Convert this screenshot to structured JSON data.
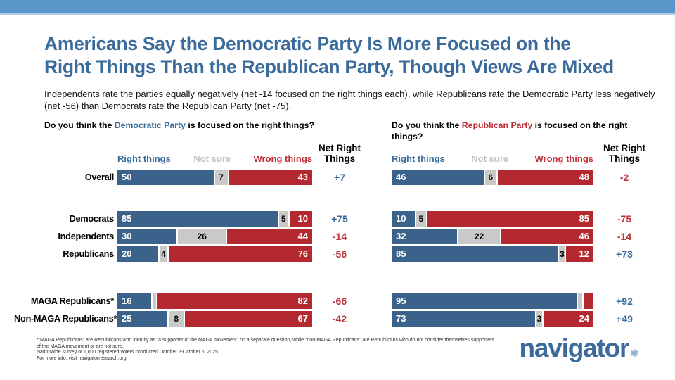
{
  "header": {
    "title_line1": "Americans Say the Democratic Party Is More Focused on the",
    "title_line2": "Right Things Than the Republican Party, Though Views Are Mixed",
    "subtitle": "Independents rate the parties equally negatively (net -14 focused on the right things each), while Republicans rate the Democratic Party less negatively (net -56) than Democrats rate the Republican Party (net -75)."
  },
  "colors": {
    "band_blue": "#5B96C8",
    "title_blue": "#3A6B9B",
    "bar_blue": "#3A628B",
    "bar_red": "#B4292F",
    "bar_gray": "#C9C9C7",
    "net_blue": "#3A6B9B",
    "net_red": "#BD3238",
    "header_gray": "#C2C2C0"
  },
  "chart_data": [
    {
      "type": "stacked-bar-100",
      "show_row_labels": true,
      "question": {
        "prefix": "Do you think the ",
        "party": "Democratic Party",
        "party_class": "q-party-blue",
        "suffix_line1": " is focused on the right things?",
        "line2": ""
      },
      "columns": [
        "Right things",
        "Not sure",
        "Wrong things"
      ],
      "net_header_line1": "Net Right",
      "net_header_line2": "Things",
      "rows": [
        {
          "label": "Overall",
          "group": 0,
          "values": [
            50,
            7,
            43
          ],
          "labels": [
            "50",
            "7",
            "43"
          ],
          "net": "+7",
          "net_color": "blue"
        },
        {
          "label": "Democrats",
          "group": 1,
          "values": [
            85,
            5,
            10
          ],
          "labels": [
            "85",
            "5",
            "10"
          ],
          "net": "+75",
          "net_color": "blue"
        },
        {
          "label": "Independents",
          "group": 1,
          "values": [
            30,
            26,
            44
          ],
          "labels": [
            "30",
            "26",
            "44"
          ],
          "net": "-14",
          "net_color": "red"
        },
        {
          "label": "Republicans",
          "group": 1,
          "values": [
            20,
            4,
            76
          ],
          "labels": [
            "20",
            "4",
            "76"
          ],
          "net": "-56",
          "net_color": "red"
        },
        {
          "label": "MAGA Republicans*",
          "group": 2,
          "values": [
            16,
            2,
            82
          ],
          "labels": [
            "16",
            "",
            "82"
          ],
          "net": "-66",
          "net_color": "red"
        },
        {
          "label": "Non-MAGA Republicans*",
          "group": 2,
          "values": [
            25,
            8,
            67
          ],
          "labels": [
            "25",
            "8",
            "67"
          ],
          "net": "-42",
          "net_color": "red"
        }
      ]
    },
    {
      "type": "stacked-bar-100",
      "show_row_labels": false,
      "question": {
        "prefix": "Do you think the ",
        "party": "Republican Party",
        "party_class": "q-party-red",
        "suffix_line1": " is focused on the right",
        "line2": "things?"
      },
      "columns": [
        "Right things",
        "Not sure",
        "Wrong things"
      ],
      "net_header_line1": "Net Right",
      "net_header_line2": "Things",
      "rows": [
        {
          "label": "Overall",
          "group": 0,
          "values": [
            46,
            6,
            48
          ],
          "labels": [
            "46",
            "6",
            "48"
          ],
          "net": "-2",
          "net_color": "red"
        },
        {
          "label": "Democrats",
          "group": 1,
          "values": [
            10,
            5,
            85
          ],
          "labels": [
            "10",
            "5",
            "85"
          ],
          "net": "-75",
          "net_color": "red"
        },
        {
          "label": "Independents",
          "group": 1,
          "values": [
            32,
            22,
            46
          ],
          "labels": [
            "32",
            "22",
            "46"
          ],
          "net": "-14",
          "net_color": "red"
        },
        {
          "label": "Republicans",
          "group": 1,
          "values": [
            85,
            3,
            12
          ],
          "labels": [
            "85",
            "3",
            "12"
          ],
          "net": "+73",
          "net_color": "blue"
        },
        {
          "label": "MAGA Republicans*",
          "group": 2,
          "values": [
            95,
            2,
            3
          ],
          "labels": [
            "95",
            "",
            ""
          ],
          "net": "+92",
          "net_color": "blue"
        },
        {
          "label": "Non-MAGA Republicans*",
          "group": 2,
          "values": [
            73,
            3,
            24
          ],
          "labels": [
            "73",
            "3",
            "24"
          ],
          "net": "+49",
          "net_color": "blue"
        }
      ]
    }
  ],
  "footnote": {
    "line1": "*“MAGA Republicans” are Republicans who identify as “a supporter of the MAGA movement” on a separate question, while “non-MAGA Republicans” are Republicans who do not consider themselves supporters of the MAGA movement or are not sure.",
    "line2": "Nationwide survey of 1,000 registered voters conducted October 2-October 5, 2025.",
    "line3": "For more info, visit navigatorresearch.org."
  },
  "logo": {
    "text": "navigator",
    "star": "✱"
  }
}
